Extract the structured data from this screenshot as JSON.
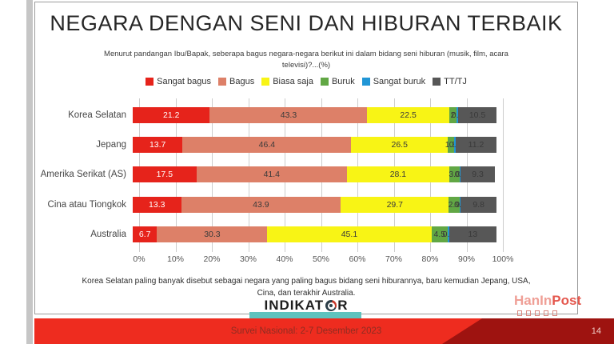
{
  "page": {
    "title": "NEGARA DENGAN SENI DAN HIBURAN TERBAIK",
    "subtitle": "Menurut pandangan Ibu/Bapak, seberapa bagus negara-negara berikut ini dalam bidang seni hiburan (musik, film, acara televisi)?...(%)",
    "note_line1": "Korea Selatan paling banyak disebut sebagai negara yang paling bagus bidang seni hiburannya, baru kemudian Jepang, USA,",
    "note_line2": "Cina, dan terakhir Australia.",
    "page_number": "14"
  },
  "footer": {
    "survey_label": "Survei Nasional: 2-7 Desember 2023",
    "logo_part1": "INDIKAT",
    "logo_part2": "R",
    "bar_color": "#ee2c1f",
    "wedge_color": "#9e1310",
    "teal_bar_color": "#5ec3be"
  },
  "watermark": {
    "part1": "HanIn",
    "part2": "Post"
  },
  "chart_data": {
    "type": "bar",
    "orientation": "horizontal",
    "stacked": true,
    "title": "NEGARA DENGAN SENI DAN HIBURAN TERBAIK",
    "xlabel": "",
    "ylabel": "",
    "xlim": [
      0,
      100
    ],
    "grid": "vertical",
    "legend_position": "top",
    "categories": [
      "Korea Selatan",
      "Jepang",
      "Amerika Serikat (AS)",
      "Cina atau Tiongkok",
      "Australia"
    ],
    "series": [
      {
        "name": "Sangat bagus",
        "color": "#e6231b",
        "values": [
          21.2,
          13.7,
          17.5,
          13.3,
          6.7
        ]
      },
      {
        "name": "Bagus",
        "color": "#dd8068",
        "values": [
          43.3,
          46.4,
          41.4,
          43.9,
          30.3
        ]
      },
      {
        "name": "Biasa saja",
        "color": "#f8f415",
        "values": [
          22.5,
          26.5,
          28.1,
          29.7,
          45.1
        ]
      },
      {
        "name": "Buruk",
        "color": "#61a744",
        "values": [
          2.0,
          1.8,
          3.0,
          2.9,
          4.5
        ]
      },
      {
        "name": "Sangat buruk",
        "color": "#2196d6",
        "values": [
          0.5,
          0.4,
          0.2,
          0.4,
          0.4
        ]
      },
      {
        "name": "TT/TJ",
        "color": "#575757",
        "values": [
          10.5,
          11.2,
          9.3,
          9.8,
          13
        ]
      }
    ],
    "value_labels": [
      [
        "21.2",
        "43.3",
        "22.5",
        "2",
        "0.5",
        "10.5"
      ],
      [
        "13.7",
        "46.4",
        "26.5",
        "1.8",
        "0.4",
        "11.2"
      ],
      [
        "17.5",
        "41.4",
        "28.1",
        "3.0",
        "0.2",
        "9.3"
      ],
      [
        "13.3",
        "43.9",
        "29.7",
        "2.9",
        "0.4",
        "9.8"
      ],
      [
        "6.7",
        "30.3",
        "45.1",
        "4.5",
        "0.4",
        "13"
      ]
    ],
    "x_ticks": [
      "0%",
      "10%",
      "20%",
      "30%",
      "40%",
      "50%",
      "60%",
      "70%",
      "80%",
      "90%",
      "100%"
    ]
  }
}
